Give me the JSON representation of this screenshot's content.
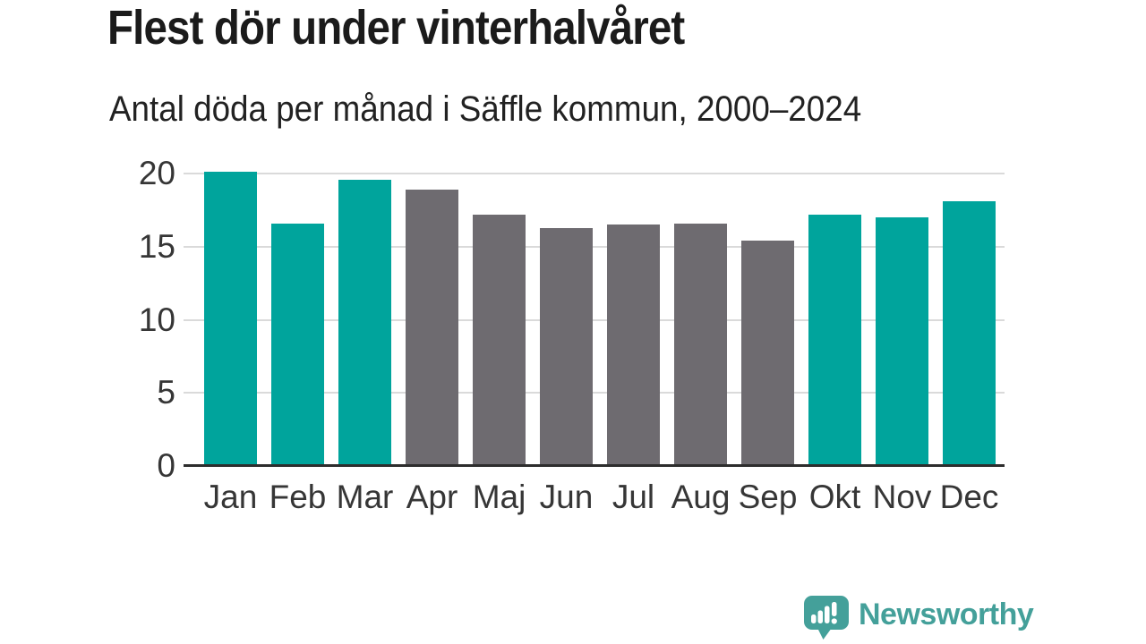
{
  "header": {
    "title": "Flest dör under vinterhalvåret",
    "subtitle": "Antal döda per månad i Säffle kommun, 2000–2024"
  },
  "chart_data": {
    "type": "bar",
    "title": "Flest dör under vinterhalvåret",
    "subtitle": "Antal döda per månad i Säffle kommun, 2000–2024",
    "categories": [
      "Jan",
      "Feb",
      "Mar",
      "Apr",
      "Maj",
      "Jun",
      "Jul",
      "Aug",
      "Sep",
      "Okt",
      "Nov",
      "Dec"
    ],
    "values": [
      20.1,
      16.6,
      19.6,
      18.9,
      17.2,
      16.3,
      16.5,
      16.6,
      15.4,
      17.2,
      17.0,
      18.1
    ],
    "bar_colors": [
      "teal",
      "teal",
      "teal",
      "gray",
      "gray",
      "gray",
      "gray",
      "gray",
      "gray",
      "teal",
      "teal",
      "teal"
    ],
    "palette": {
      "teal": "#00a49c",
      "gray": "#6e6b70"
    },
    "xlabel": "",
    "ylabel": "",
    "yticks": [
      0,
      5,
      10,
      15,
      20
    ],
    "ylim": [
      0,
      20.5
    ],
    "grid": true,
    "gridline_color": "#dadada",
    "axis_line_color": "#2d2d2d",
    "label_color": "#363636",
    "legend": "none"
  },
  "footer": {
    "brand": "Newsworthy",
    "brand_color": "#44a09a"
  }
}
